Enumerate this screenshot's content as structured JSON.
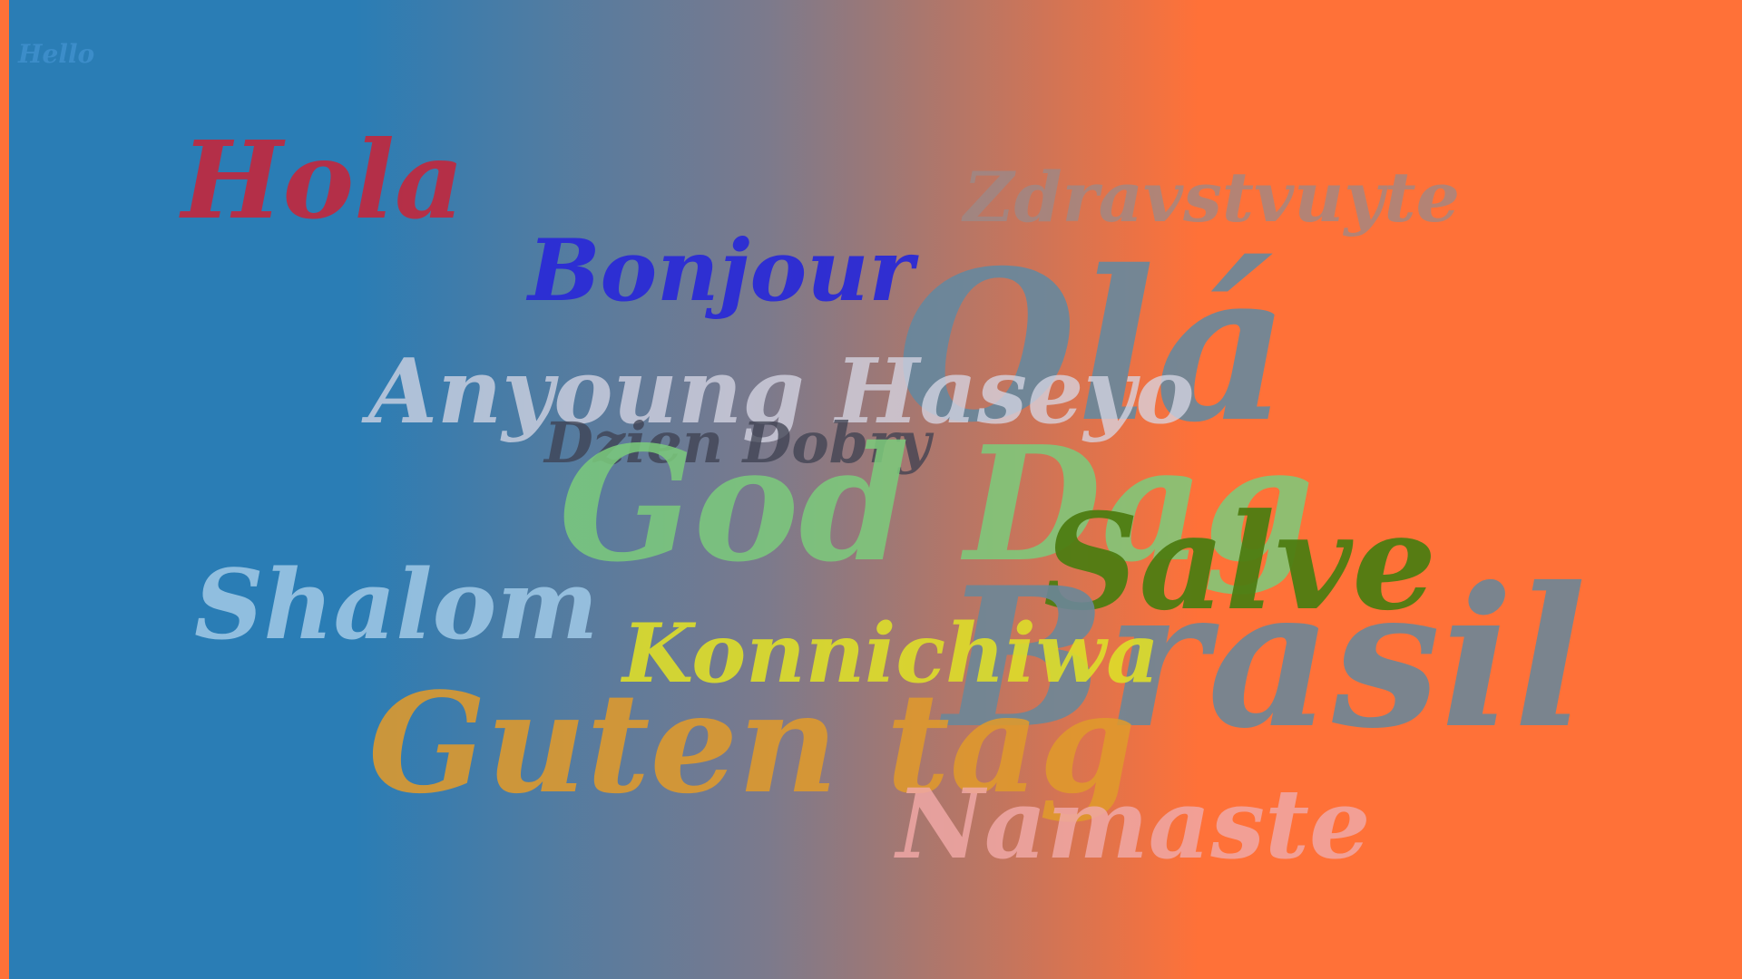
{
  "words": [
    {
      "text": "Hello",
      "color": "#3f8fcc"
    },
    {
      "text": "Hola",
      "color": "#c0293f"
    },
    {
      "text": "Bonjour",
      "color": "#2b2bd6"
    },
    {
      "text": "Zdravstvuyte",
      "color": "#9a8a8a"
    },
    {
      "text": "Olá",
      "color": "#6489a0"
    },
    {
      "text": "Anyoung Haseyo",
      "color": "#d8d8e6"
    },
    {
      "text": "Dzien Dobry",
      "color": "#3d4050"
    },
    {
      "text": "God Dag",
      "color": "#7ccc7c"
    },
    {
      "text": "Salve",
      "color": "#4e7d12"
    },
    {
      "text": "Brasil",
      "color": "#6c8798"
    },
    {
      "text": "Shalom",
      "color": "#9cc6e4"
    },
    {
      "text": "Konnichiwa",
      "color": "#dede2a"
    },
    {
      "text": "Guten tag",
      "color": "#e09a2c"
    },
    {
      "text": "Namaste",
      "color": "#f0a8a6"
    }
  ]
}
